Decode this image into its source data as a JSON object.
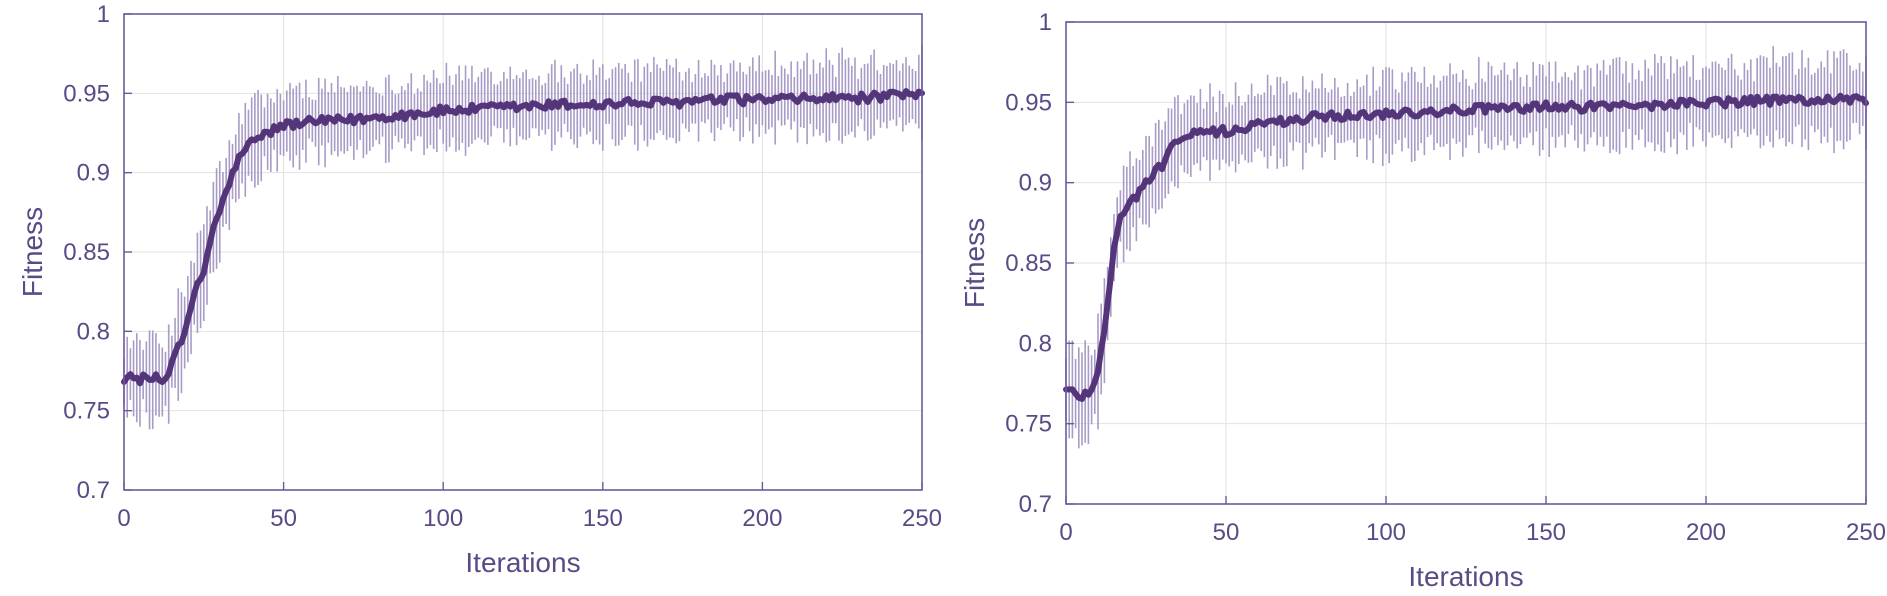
{
  "colors": {
    "line": "#54357a",
    "errorbar": "#a89bc6",
    "axis": "#6a5a9a",
    "grid": "#e2e2e2",
    "text": "#5a4a86"
  },
  "chart_data": [
    {
      "type": "line",
      "xlabel": "Iterations",
      "ylabel": "Fitness",
      "xlim": [
        0,
        250
      ],
      "ylim": [
        0.7,
        1.0
      ],
      "xticks": [
        "0",
        "50",
        "100",
        "150",
        "200",
        "250"
      ],
      "yticks": [
        "0.7",
        "0.75",
        "0.8",
        "0.85",
        "0.9",
        "0.95",
        "1"
      ],
      "grid": true,
      "error_bars": true,
      "series": [
        {
          "x": [
            0,
            5,
            10,
            13,
            15,
            20,
            22,
            25,
            28,
            30,
            33,
            35,
            38,
            40,
            45,
            50,
            55,
            60,
            70,
            80,
            90,
            100,
            110,
            120,
            130,
            140,
            150,
            160,
            170,
            180,
            190,
            200,
            210,
            220,
            230,
            240,
            250
          ],
          "y": [
            0.771,
            0.77,
            0.77,
            0.769,
            0.782,
            0.805,
            0.823,
            0.838,
            0.866,
            0.876,
            0.893,
            0.905,
            0.915,
            0.919,
            0.925,
            0.93,
            0.931,
            0.932,
            0.933,
            0.935,
            0.937,
            0.939,
            0.94,
            0.941,
            0.942,
            0.943,
            0.943,
            0.944,
            0.944,
            0.945,
            0.946,
            0.946,
            0.946,
            0.947,
            0.947,
            0.948,
            0.949
          ],
          "err": [
            0.022,
            0.022,
            0.022,
            0.022,
            0.025,
            0.025,
            0.025,
            0.025,
            0.024,
            0.023,
            0.022,
            0.022,
            0.022,
            0.022,
            0.021,
            0.02,
            0.02,
            0.02,
            0.02,
            0.02,
            0.02,
            0.02,
            0.02,
            0.02,
            0.02,
            0.02,
            0.02,
            0.02,
            0.02,
            0.02,
            0.02,
            0.021,
            0.021,
            0.021,
            0.021,
            0.021,
            0.021
          ]
        }
      ]
    },
    {
      "type": "line",
      "xlabel": "Iterations",
      "ylabel": "Fitness",
      "xlim": [
        0,
        250
      ],
      "ylim": [
        0.7,
        1.0
      ],
      "xticks": [
        "0",
        "50",
        "100",
        "150",
        "200",
        "250"
      ],
      "yticks": [
        "0.7",
        "0.75",
        "0.8",
        "0.85",
        "0.9",
        "0.95",
        "1"
      ],
      "grid": true,
      "error_bars": true,
      "series": [
        {
          "x": [
            0,
            3,
            5,
            8,
            10,
            12,
            15,
            17,
            20,
            25,
            30,
            33,
            35,
            40,
            45,
            50,
            55,
            60,
            70,
            80,
            90,
            100,
            110,
            120,
            130,
            140,
            150,
            160,
            170,
            180,
            190,
            200,
            210,
            220,
            230,
            240,
            250
          ],
          "y": [
            0.771,
            0.769,
            0.767,
            0.772,
            0.783,
            0.81,
            0.858,
            0.878,
            0.887,
            0.9,
            0.911,
            0.922,
            0.928,
            0.93,
            0.931,
            0.932,
            0.934,
            0.936,
            0.939,
            0.941,
            0.942,
            0.943,
            0.944,
            0.945,
            0.946,
            0.946,
            0.947,
            0.947,
            0.948,
            0.948,
            0.949,
            0.95,
            0.95,
            0.951,
            0.951,
            0.952,
            0.952
          ],
          "err": [
            0.025,
            0.025,
            0.025,
            0.025,
            0.025,
            0.025,
            0.024,
            0.023,
            0.022,
            0.022,
            0.022,
            0.021,
            0.021,
            0.021,
            0.021,
            0.021,
            0.021,
            0.021,
            0.021,
            0.021,
            0.021,
            0.021,
            0.021,
            0.021,
            0.021,
            0.021,
            0.021,
            0.021,
            0.021,
            0.021,
            0.021,
            0.022,
            0.022,
            0.022,
            0.022,
            0.022,
            0.022
          ]
        }
      ]
    }
  ]
}
